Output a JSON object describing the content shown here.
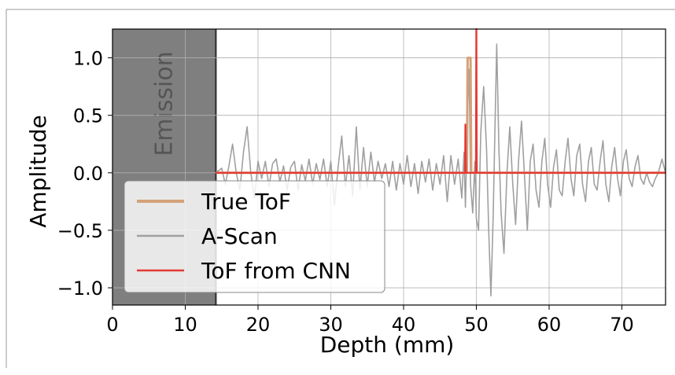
{
  "chart_data": {
    "type": "line",
    "xlabel": "Depth (mm)",
    "ylabel": "Amplitude",
    "xlim": [
      0,
      76
    ],
    "ylim": [
      -1.15,
      1.25
    ],
    "grid": true,
    "x_ticks": [
      0,
      10,
      20,
      30,
      40,
      50,
      60,
      70
    ],
    "y_ticks": [
      1.0,
      0.5,
      0.0,
      -0.5,
      -1.0
    ],
    "x_tick_labels": [
      "0",
      "10",
      "20",
      "30",
      "40",
      "50",
      "60",
      "70"
    ],
    "y_tick_labels": [
      "1.0",
      "0.5",
      "0.0",
      "−0.5",
      "−1.0"
    ],
    "emission_region": {
      "label": "Emission",
      "x_start": 0,
      "x_end": 14.2,
      "color": "#7f7f7f"
    },
    "legend": {
      "placement": "lower-left"
    },
    "series": [
      {
        "name": "A-Scan",
        "color": "#a0a0a0",
        "points": [
          [
            14.2,
            0.0
          ],
          [
            15.0,
            0.04
          ],
          [
            15.5,
            -0.1
          ],
          [
            16.0,
            0.06
          ],
          [
            16.5,
            0.25
          ],
          [
            17.0,
            0.0
          ],
          [
            17.5,
            -0.15
          ],
          [
            18.0,
            0.18
          ],
          [
            18.5,
            0.4
          ],
          [
            19.0,
            0.0
          ],
          [
            19.5,
            -0.22
          ],
          [
            20.0,
            0.1
          ],
          [
            20.5,
            -0.05
          ],
          [
            21.0,
            0.1
          ],
          [
            21.5,
            -0.12
          ],
          [
            22.0,
            0.08
          ],
          [
            22.5,
            0.12
          ],
          [
            23.0,
            -0.08
          ],
          [
            23.5,
            0.06
          ],
          [
            24.0,
            -0.15
          ],
          [
            24.5,
            0.05
          ],
          [
            25.0,
            0.1
          ],
          [
            25.5,
            -0.15
          ],
          [
            26.0,
            0.07
          ],
          [
            26.5,
            -0.07
          ],
          [
            27.0,
            0.12
          ],
          [
            27.5,
            -0.1
          ],
          [
            28.0,
            0.08
          ],
          [
            28.5,
            -0.06
          ],
          [
            29.0,
            0.12
          ],
          [
            29.5,
            -0.12
          ],
          [
            30.0,
            0.1
          ],
          [
            30.5,
            -0.28
          ],
          [
            31.0,
            0.05
          ],
          [
            31.5,
            0.32
          ],
          [
            32.0,
            -0.12
          ],
          [
            32.5,
            0.15
          ],
          [
            33.0,
            -0.2
          ],
          [
            33.5,
            0.4
          ],
          [
            34.0,
            -0.15
          ],
          [
            34.5,
            0.22
          ],
          [
            35.0,
            -0.12
          ],
          [
            35.5,
            0.18
          ],
          [
            36.0,
            -0.08
          ],
          [
            36.5,
            0.1
          ],
          [
            37.0,
            -0.05
          ],
          [
            37.5,
            0.08
          ],
          [
            38.0,
            -0.12
          ],
          [
            38.5,
            0.1
          ],
          [
            39.0,
            -0.15
          ],
          [
            39.5,
            0.08
          ],
          [
            40.0,
            -0.1
          ],
          [
            40.5,
            0.15
          ],
          [
            41.0,
            -0.12
          ],
          [
            41.5,
            0.08
          ],
          [
            42.0,
            -0.18
          ],
          [
            42.5,
            0.1
          ],
          [
            43.0,
            -0.08
          ],
          [
            43.5,
            0.12
          ],
          [
            44.0,
            -0.15
          ],
          [
            44.5,
            0.08
          ],
          [
            45.0,
            -0.1
          ],
          [
            45.5,
            0.15
          ],
          [
            46.0,
            -0.25
          ],
          [
            46.5,
            0.15
          ],
          [
            47.0,
            -0.1
          ],
          [
            47.5,
            0.12
          ],
          [
            48.0,
            -0.22
          ],
          [
            48.3,
            0.18
          ],
          [
            48.5,
            -0.3
          ],
          [
            48.8,
            0.55
          ],
          [
            49.0,
            0.9
          ],
          [
            49.2,
            -0.1
          ],
          [
            49.5,
            -0.35
          ],
          [
            49.8,
            0.1
          ],
          [
            50.0,
            -0.4
          ],
          [
            50.3,
            -0.5
          ],
          [
            50.6,
            0.35
          ],
          [
            51.0,
            0.75
          ],
          [
            51.4,
            0.2
          ],
          [
            51.7,
            -0.5
          ],
          [
            52.0,
            -1.07
          ],
          [
            52.3,
            -0.4
          ],
          [
            52.6,
            0.5
          ],
          [
            52.8,
            1.12
          ],
          [
            53.1,
            0.2
          ],
          [
            53.4,
            -0.35
          ],
          [
            53.8,
            -0.7
          ],
          [
            54.2,
            0.0
          ],
          [
            54.6,
            0.4
          ],
          [
            55.0,
            -0.1
          ],
          [
            55.4,
            -0.45
          ],
          [
            55.8,
            0.1
          ],
          [
            56.2,
            0.45
          ],
          [
            56.6,
            0.0
          ],
          [
            57.0,
            -0.5
          ],
          [
            57.4,
            0.1
          ],
          [
            57.8,
            0.25
          ],
          [
            58.2,
            -0.15
          ],
          [
            58.6,
            -0.3
          ],
          [
            59.0,
            0.1
          ],
          [
            59.4,
            0.3
          ],
          [
            59.8,
            -0.1
          ],
          [
            60.2,
            -0.3
          ],
          [
            60.6,
            0.05
          ],
          [
            61.0,
            0.2
          ],
          [
            61.4,
            -0.15
          ],
          [
            61.8,
            -0.2
          ],
          [
            62.2,
            0.1
          ],
          [
            62.6,
            0.3
          ],
          [
            63.0,
            -0.05
          ],
          [
            63.4,
            -0.2
          ],
          [
            63.8,
            0.15
          ],
          [
            64.2,
            0.25
          ],
          [
            64.6,
            -0.1
          ],
          [
            65.0,
            -0.25
          ],
          [
            65.4,
            0.1
          ],
          [
            65.8,
            0.22
          ],
          [
            66.2,
            -0.1
          ],
          [
            66.6,
            -0.15
          ],
          [
            67.0,
            0.1
          ],
          [
            67.4,
            0.28
          ],
          [
            67.8,
            -0.1
          ],
          [
            68.2,
            -0.25
          ],
          [
            68.6,
            0.05
          ],
          [
            69.0,
            0.22
          ],
          [
            69.4,
            -0.05
          ],
          [
            69.8,
            -0.2
          ],
          [
            70.2,
            0.1
          ],
          [
            70.6,
            0.2
          ],
          [
            71.0,
            -0.05
          ],
          [
            71.4,
            -0.12
          ],
          [
            71.8,
            0.05
          ],
          [
            72.2,
            0.15
          ],
          [
            72.6,
            -0.05
          ],
          [
            73.0,
            -0.1
          ],
          [
            73.4,
            0.0
          ],
          [
            73.8,
            -0.08
          ],
          [
            74.2,
            -0.12
          ],
          [
            74.6,
            -0.05
          ],
          [
            75.0,
            0.0
          ],
          [
            75.5,
            0.12
          ],
          [
            76.0,
            0.0
          ]
        ]
      },
      {
        "name": "True ToF",
        "color": "#d4a27a",
        "points": [
          [
            14.2,
            0.0
          ],
          [
            48.7,
            0.0
          ],
          [
            48.8,
            1.0
          ],
          [
            49.2,
            1.0
          ],
          [
            49.3,
            0.0
          ],
          [
            76.0,
            0.0
          ]
        ]
      },
      {
        "name": "ToF from CNN",
        "color": "#e53935",
        "points": [
          [
            14.2,
            0.0
          ],
          [
            48.45,
            0.0
          ],
          [
            48.5,
            0.42
          ],
          [
            48.55,
            0.0
          ],
          [
            49.95,
            0.0
          ],
          [
            50.0,
            1.25
          ],
          [
            50.05,
            0.0
          ],
          [
            76.0,
            0.0
          ]
        ]
      }
    ]
  }
}
